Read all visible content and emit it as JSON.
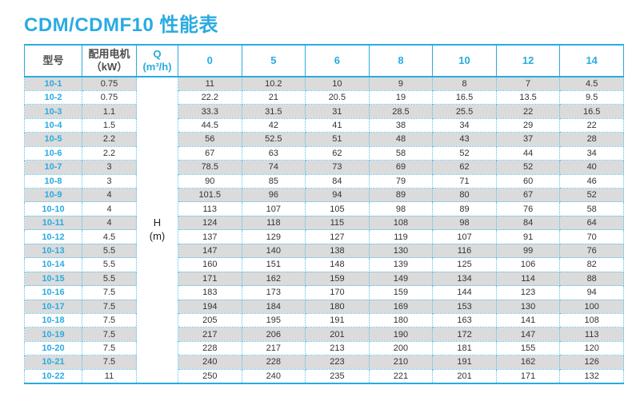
{
  "title": "CDM/CDMF10 性能表",
  "colors": {
    "accent": "#29abe2",
    "dotted_border": "#54c0ec",
    "row_stripe": "#dbdbdb",
    "body_text": "#333333",
    "header_text": "#4d4d4d"
  },
  "table": {
    "headers": {
      "model": "型号",
      "motor_line1": "配用电机",
      "motor_line2": "（kW）",
      "q_line1": "Q",
      "q_line2": "(m³/h)",
      "flow_columns": [
        "0",
        "5",
        "6",
        "8",
        "10",
        "12",
        "14"
      ]
    },
    "h_cell": {
      "line1": "H",
      "line2": "(m)"
    },
    "rows": [
      {
        "model": "10-1",
        "kw": "0.75",
        "values": [
          "11",
          "10.2",
          "10",
          "9",
          "8",
          "7",
          "4.5"
        ]
      },
      {
        "model": "10-2",
        "kw": "0.75",
        "values": [
          "22.2",
          "21",
          "20.5",
          "19",
          "16.5",
          "13.5",
          "9.5"
        ]
      },
      {
        "model": "10-3",
        "kw": "1.1",
        "values": [
          "33.3",
          "31.5",
          "31",
          "28.5",
          "25.5",
          "22",
          "16.5"
        ]
      },
      {
        "model": "10-4",
        "kw": "1.5",
        "values": [
          "44.5",
          "42",
          "41",
          "38",
          "34",
          "29",
          "22"
        ]
      },
      {
        "model": "10-5",
        "kw": "2.2",
        "values": [
          "56",
          "52.5",
          "51",
          "48",
          "43",
          "37",
          "28"
        ]
      },
      {
        "model": "10-6",
        "kw": "2.2",
        "values": [
          "67",
          "63",
          "62",
          "58",
          "52",
          "44",
          "34"
        ]
      },
      {
        "model": "10-7",
        "kw": "3",
        "values": [
          "78.5",
          "74",
          "73",
          "69",
          "62",
          "52",
          "40"
        ]
      },
      {
        "model": "10-8",
        "kw": "3",
        "values": [
          "90",
          "85",
          "84",
          "79",
          "71",
          "60",
          "46"
        ]
      },
      {
        "model": "10-9",
        "kw": "4",
        "values": [
          "101.5",
          "96",
          "94",
          "89",
          "80",
          "67",
          "52"
        ]
      },
      {
        "model": "10-10",
        "kw": "4",
        "values": [
          "113",
          "107",
          "105",
          "98",
          "89",
          "76",
          "58"
        ]
      },
      {
        "model": "10-11",
        "kw": "4",
        "values": [
          "124",
          "118",
          "115",
          "108",
          "98",
          "84",
          "64"
        ]
      },
      {
        "model": "10-12",
        "kw": "4.5",
        "values": [
          "137",
          "129",
          "127",
          "119",
          "107",
          "91",
          "70"
        ]
      },
      {
        "model": "10-13",
        "kw": "5.5",
        "values": [
          "147",
          "140",
          "138",
          "130",
          "116",
          "99",
          "76"
        ]
      },
      {
        "model": "10-14",
        "kw": "5.5",
        "values": [
          "160",
          "151",
          "148",
          "139",
          "125",
          "106",
          "82"
        ]
      },
      {
        "model": "10-15",
        "kw": "5.5",
        "values": [
          "171",
          "162",
          "159",
          "149",
          "134",
          "114",
          "88"
        ]
      },
      {
        "model": "10-16",
        "kw": "7.5",
        "values": [
          "183",
          "173",
          "170",
          "159",
          "144",
          "123",
          "94"
        ]
      },
      {
        "model": "10-17",
        "kw": "7.5",
        "values": [
          "194",
          "184",
          "180",
          "169",
          "153",
          "130",
          "100"
        ]
      },
      {
        "model": "10-18",
        "kw": "7.5",
        "values": [
          "205",
          "195",
          "191",
          "180",
          "163",
          "141",
          "108"
        ]
      },
      {
        "model": "10-19",
        "kw": "7.5",
        "values": [
          "217",
          "206",
          "201",
          "190",
          "172",
          "147",
          "113"
        ]
      },
      {
        "model": "10-20",
        "kw": "7.5",
        "values": [
          "228",
          "217",
          "213",
          "200",
          "181",
          "155",
          "120"
        ]
      },
      {
        "model": "10-21",
        "kw": "7.5",
        "values": [
          "240",
          "228",
          "223",
          "210",
          "191",
          "162",
          "126"
        ]
      },
      {
        "model": "10-22",
        "kw": "11",
        "values": [
          "250",
          "240",
          "235",
          "221",
          "201",
          "171",
          "132"
        ]
      }
    ]
  }
}
